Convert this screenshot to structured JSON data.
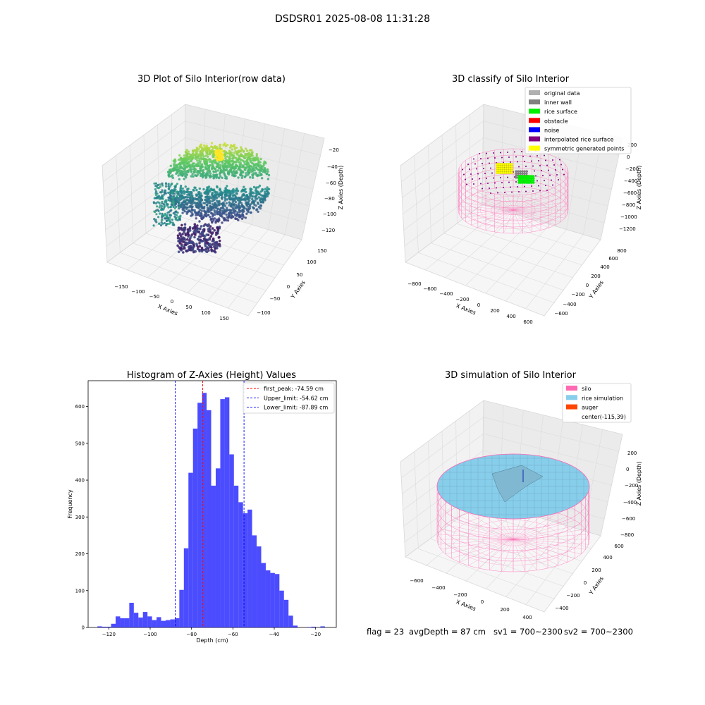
{
  "figure_title": "DSDSR01 2025-08-08 11:31:28",
  "panels": {
    "raw": {
      "title": "3D Plot of Silo Interior(row data)",
      "xlabel": "X Axies",
      "ylabel": "Y Axies",
      "zlabel": "Z Axies (Depth)",
      "xticks": [
        "−150",
        "−100",
        "−50",
        "0",
        "50",
        "100",
        "150"
      ],
      "yticks": [
        "−100",
        "−50",
        "0",
        "50",
        "100",
        "150"
      ],
      "zticks": [
        "−20",
        "−40",
        "−60",
        "−80",
        "−100",
        "−120"
      ]
    },
    "classify": {
      "title": "3D classify of Silo Interior",
      "xlabel": "X Axies",
      "ylabel": "Y Axies",
      "zlabel": "Z Axies (Depth)",
      "xticks": [
        "−800",
        "−600",
        "−400",
        "−200",
        "0",
        "200",
        "400",
        "600"
      ],
      "yticks": [
        "−600",
        "−400",
        "−200",
        "0",
        "200",
        "400",
        "600",
        "800"
      ],
      "zticks": [
        "200",
        "0",
        "−200",
        "−400",
        "−600",
        "−800",
        "−1000",
        "−1200"
      ],
      "legend": [
        {
          "label": "original data",
          "color": "#b0b0b0"
        },
        {
          "label": "inner wall",
          "color": "#808080"
        },
        {
          "label": "rice surface",
          "color": "#00ee00"
        },
        {
          "label": "obstacle",
          "color": "#ff0000"
        },
        {
          "label": "noise",
          "color": "#0000ff"
        },
        {
          "label": "interpolated rice surface",
          "color": "#800080"
        },
        {
          "label": "symmetric generated points",
          "color": "#ffff00"
        }
      ]
    },
    "simulation": {
      "title": "3D simulation of Silo Interior",
      "xlabel": "X Axies",
      "ylabel": "Y Axies",
      "zlabel": "Z Axies (Depth)",
      "xticks": [
        "−600",
        "−400",
        "−200",
        "0",
        "200",
        "400"
      ],
      "yticks": [
        "−400",
        "−200",
        "0",
        "200",
        "400",
        "600"
      ],
      "zticks": [
        "200",
        "0",
        "−200",
        "−400",
        "−600",
        "−800"
      ],
      "legend": [
        {
          "label": "silo",
          "color": "#ff69b4"
        },
        {
          "label": "rice simulation",
          "color": "#87ceeb"
        },
        {
          "label": "auger",
          "color": "#ff4500"
        },
        {
          "label": "center(-115,39)",
          "color": ""
        }
      ]
    }
  },
  "status": {
    "flag": "flag = 23",
    "avg_depth": "avgDepth = 87 cm",
    "sv1": "sv1 = 700~2300",
    "sv2": "sv2 = 700~2300"
  },
  "chart_data": [
    {
      "type": "bar",
      "title": "Histogram of Z-Axies (Height) Values",
      "xlabel": "Depth (cm)",
      "ylabel": "Frequency",
      "xlim": [
        -130,
        -10
      ],
      "ylim": [
        0,
        670
      ],
      "xticks": [
        -120,
        -100,
        -80,
        -60,
        -40,
        -20
      ],
      "yticks": [
        0,
        100,
        200,
        300,
        400,
        500,
        600
      ],
      "bar_color": "#0000ff",
      "bin_width": 2.2,
      "bin_starts": [
        -125.5,
        -123.3,
        -121.1,
        -118.9,
        -116.7,
        -114.5,
        -112.3,
        -110.1,
        -107.9,
        -105.7,
        -103.5,
        -101.3,
        -99.1,
        -96.9,
        -94.7,
        -92.5,
        -90.3,
        -88.1,
        -85.9,
        -83.7,
        -81.5,
        -79.3,
        -77.1,
        -74.9,
        -72.7,
        -70.5,
        -68.3,
        -66.1,
        -63.9,
        -61.7,
        -59.5,
        -57.3,
        -55.1,
        -52.9,
        -50.7,
        -48.5,
        -46.3,
        -44.1,
        -41.9,
        -39.7,
        -37.5,
        -35.3,
        -33.1,
        -30.9,
        -28.7,
        -26.5,
        -24.3,
        -22.1,
        -19.9,
        -17.7,
        -15.5
      ],
      "counts": [
        3,
        2,
        2,
        10,
        30,
        25,
        25,
        67,
        40,
        27,
        42,
        30,
        20,
        28,
        18,
        20,
        22,
        25,
        102,
        215,
        420,
        540,
        610,
        637,
        590,
        385,
        432,
        620,
        625,
        470,
        385,
        340,
        310,
        320,
        250,
        220,
        175,
        155,
        148,
        145,
        100,
        75,
        32,
        5,
        0,
        0,
        1,
        2,
        0,
        3,
        0
      ],
      "vlines": [
        {
          "label": "first_peak: -74.59 cm",
          "value": -74.59,
          "color": "#ff0000"
        },
        {
          "label": "Upper_limit: -54.62 cm",
          "value": -54.62,
          "color": "#0000ff"
        },
        {
          "label": "Lower_limit: -87.89 cm",
          "value": -87.89,
          "color": "#0000ff"
        }
      ]
    }
  ]
}
